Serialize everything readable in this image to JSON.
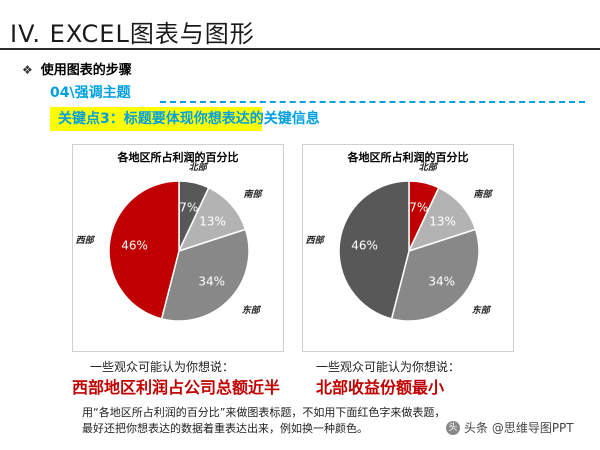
{
  "slide": {
    "title": "IV. EXCEL图表与图形",
    "bullet": "使用图表的步骤",
    "subhead": "04\\强调主题",
    "key_point": "关键点3：标题要体现你想表达的关键信息",
    "icon": "diamond-bullet-icon"
  },
  "colors": {
    "accent_blue": "#00a0e0",
    "highlight_yellow": "#ffff00",
    "emphasis_red": "#c00000",
    "north_red": "#c00000",
    "gray_dark": "#585858",
    "gray_mid": "#888888",
    "gray_light": "#b3b3b3"
  },
  "chart_data": [
    {
      "type": "pie",
      "title": "各地区所占利润的百分比",
      "slices": [
        {
          "name": "北部",
          "value": 7,
          "label": "7%",
          "color": "#585858"
        },
        {
          "name": "南部",
          "value": 13,
          "label": "13%",
          "color": "#b3b3b3"
        },
        {
          "name": "东部",
          "value": 34,
          "label": "34%",
          "color": "#888888"
        },
        {
          "name": "西部",
          "value": 46,
          "label": "46%",
          "color": "#c00000"
        }
      ]
    },
    {
      "type": "pie",
      "title": "各地区所占利润的百分比",
      "slices": [
        {
          "name": "北部",
          "value": 7,
          "label": "7%",
          "color": "#c00000"
        },
        {
          "name": "南部",
          "value": 13,
          "label": "13%",
          "color": "#b3b3b3"
        },
        {
          "name": "东部",
          "value": 34,
          "label": "34%",
          "color": "#888888"
        },
        {
          "name": "西部",
          "value": 46,
          "label": "46%",
          "color": "#585858"
        }
      ]
    }
  ],
  "notes": {
    "left_intro": "一些观众可能认为你想说：",
    "left_headline": "西部地区利润占公司总额近半",
    "right_intro": "一些观众可能认为你想说：",
    "right_headline": "北部收益份额最小"
  },
  "footer": {
    "line1": "用“各地区所占利润的百分比”来做图表标题，不如用下面红色字来做表题，",
    "line2": "最好还把你想表达的数据着重表达出来，例如换一种颜色。"
  },
  "watermark": {
    "text": "头条 @思维导图PPT",
    "icon": "toutiao-logo-icon"
  }
}
